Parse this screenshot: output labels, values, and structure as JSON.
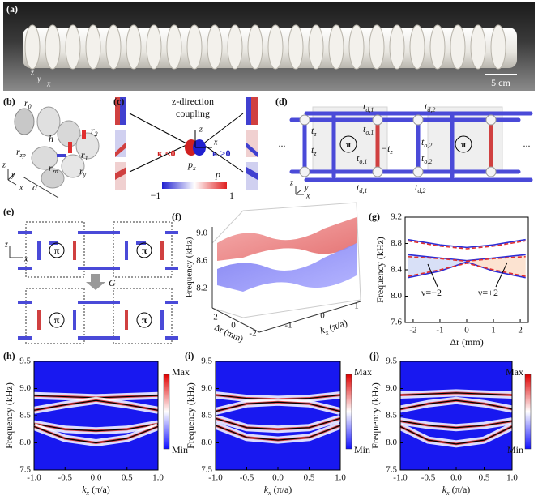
{
  "panels": {
    "a": {
      "label": "(a)",
      "axes": [
        "z",
        "y",
        "x"
      ],
      "scale": "5 cm"
    },
    "b": {
      "label": "(b)",
      "symbols": [
        {
          "m": "r",
          "s": "0"
        },
        {
          "m": "h"
        },
        {
          "m": "r",
          "s": "1"
        },
        {
          "m": "r",
          "s": "2"
        },
        {
          "m": "r",
          "s": "zp"
        },
        {
          "m": "r",
          "s": "zn"
        },
        {
          "m": "r",
          "s": "y"
        },
        {
          "m": "a"
        }
      ],
      "axes": [
        "z",
        "y",
        "x"
      ]
    },
    "c": {
      "label": "(c)",
      "title": [
        "z-direction",
        "coupling"
      ],
      "kappa_neg": "κ <0",
      "kappa_pos": "κ >0",
      "orbital": {
        "m": "p",
        "s": "x"
      },
      "axes": [
        "z",
        "x"
      ],
      "colorbar": {
        "min": "−1",
        "name": "p",
        "max": "1"
      }
    },
    "d": {
      "label": "(d)",
      "hoppings": [
        {
          "m": "t",
          "s": "d,1"
        },
        {
          "m": "t",
          "s": "d,2"
        },
        {
          "m": "t",
          "s": "z"
        },
        {
          "m": "t",
          "s": "o,1"
        },
        {
          "m": "t",
          "s": "z"
        },
        {
          "m": "−t",
          "s": "z"
        },
        {
          "m": "t",
          "s": "o,1"
        },
        {
          "m": "t",
          "s": "o,2"
        },
        {
          "m": "t",
          "s": "o,2"
        },
        {
          "m": "t",
          "s": "d,1"
        },
        {
          "m": "t",
          "s": "d,2"
        }
      ],
      "pi": [
        "π",
        "π"
      ],
      "dots": [
        "...",
        "..."
      ],
      "axes": [
        "z",
        "y",
        "x"
      ]
    },
    "e": {
      "label": "(e)",
      "arrow": "G",
      "pi": [
        "π",
        "π",
        "π",
        "π"
      ],
      "axes": [
        "z",
        "x"
      ]
    },
    "f": {
      "label": "(f)",
      "ylabel": "Frequency (kHz)",
      "yticks": [
        "9.0",
        "8.6",
        "8.2"
      ],
      "xlabel": "Δr (mm)",
      "xticks": [
        "2",
        "0",
        "-2"
      ],
      "klabel": {
        "m": "k",
        "s": "x",
        "r": " (π/a)"
      },
      "kticks": [
        "-1",
        "0",
        "1"
      ]
    }
  },
  "chart_data": [
    {
      "type": "line",
      "label": "(g)",
      "xlabel": "Δr (mm)",
      "ylabel": "Frequency (kHz)",
      "x": [
        -2.2,
        -1,
        0,
        1,
        2.2
      ],
      "xlim": [
        -2.3,
        2.3
      ],
      "xticks": [
        -2,
        -1,
        0,
        1,
        2
      ],
      "ylim": [
        7.6,
        9.2
      ],
      "yticks": [
        7.6,
        {
          "value": 8,
          "label": "8.0"
        },
        8.4,
        8.8,
        9.2
      ],
      "series": [
        {
          "color": "#2b2bd6",
          "style": "solid",
          "values": [
            8.86,
            8.78,
            8.74,
            8.78,
            8.86
          ]
        },
        {
          "color": "#2b2bd6",
          "style": "solid",
          "values": [
            8.63,
            8.58,
            8.54,
            8.58,
            8.63
          ]
        },
        {
          "color": "#2b2bd6",
          "style": "solid",
          "values": [
            8.28,
            8.38,
            8.52,
            8.38,
            8.28
          ]
        },
        {
          "color": "#e03030",
          "style": "dashed",
          "values": [
            8.84,
            8.76,
            8.72,
            8.76,
            8.84
          ]
        },
        {
          "color": "#e03030",
          "style": "dashed",
          "values": [
            8.6,
            8.57,
            8.53,
            8.57,
            8.6
          ]
        },
        {
          "color": "#e03030",
          "style": "dashed",
          "values": [
            8.3,
            8.4,
            8.5,
            8.4,
            8.3
          ]
        }
      ],
      "annotations": [
        "ν=−2",
        "ν=+2"
      ]
    },
    {
      "type": "spectrum",
      "label": "(h)",
      "xlabel": {
        "m": "k",
        "s": "x",
        "r": " (π/a)"
      },
      "ylabel": "Frequency (kHz)",
      "x": [
        -1,
        -0.5,
        0,
        0.5,
        1
      ],
      "xlim": [
        -1,
        1
      ],
      "xticks": [
        {
          "value": -1,
          "label": "-1.0"
        },
        -0.5,
        {
          "value": 0,
          "label": "0.0"
        },
        0.5,
        {
          "value": 1,
          "label": "1.0"
        }
      ],
      "ylim": [
        7.5,
        9.5
      ],
      "yticks": [
        7.5,
        {
          "value": 8,
          "label": "8.0"
        },
        8.5,
        {
          "value": 9,
          "label": "9.0"
        },
        9.5
      ],
      "colorbar": {
        "max": "Max",
        "min": "Min"
      },
      "series": [
        {
          "color": "#000000",
          "values": [
            8.87,
            8.85,
            8.83,
            8.85,
            8.87
          ]
        },
        {
          "color": "#000000",
          "values": [
            8.6,
            8.7,
            8.78,
            8.7,
            8.6
          ]
        },
        {
          "color": "#000000",
          "values": [
            8.35,
            8.25,
            8.22,
            8.25,
            8.35
          ]
        },
        {
          "color": "#000000",
          "values": [
            8.3,
            8.08,
            8.0,
            8.08,
            8.3
          ]
        }
      ]
    },
    {
      "type": "spectrum",
      "label": "(i)",
      "xlabel": {
        "m": "k",
        "s": "x",
        "r": " (π/a)"
      },
      "ylabel": "Frequency (kHz)",
      "x": [
        -1,
        -0.5,
        0,
        0.5,
        1
      ],
      "xlim": [
        -1,
        1
      ],
      "xticks": [
        {
          "value": -1,
          "label": "-1.0"
        },
        -0.5,
        {
          "value": 0,
          "label": "0.0"
        },
        0.5,
        {
          "value": 1,
          "label": "1.0"
        }
      ],
      "ylim": [
        7.5,
        9.5
      ],
      "yticks": [
        7.5,
        {
          "value": 8,
          "label": "8.0"
        },
        8.5,
        {
          "value": 9,
          "label": "9.0"
        },
        9.5
      ],
      "colorbar": {
        "max": "Max",
        "min": "Min"
      },
      "series": [
        {
          "color": "#000000",
          "values": [
            8.88,
            8.82,
            8.8,
            8.82,
            8.88
          ]
        },
        {
          "color": "#000000",
          "values": [
            8.58,
            8.72,
            8.75,
            8.72,
            8.58
          ]
        },
        {
          "color": "#000000",
          "values": [
            8.45,
            8.28,
            8.25,
            8.28,
            8.45
          ]
        },
        {
          "color": "#000000",
          "values": [
            8.32,
            8.1,
            8.05,
            8.1,
            8.32
          ]
        }
      ]
    },
    {
      "type": "spectrum",
      "label": "(j)",
      "xlabel": {
        "m": "k",
        "s": "x",
        "r": " (π/a)"
      },
      "ylabel": "Frequency (kHz)",
      "x": [
        -1,
        -0.5,
        0,
        0.5,
        1
      ],
      "xlim": [
        -1,
        1
      ],
      "xticks": [
        {
          "value": -1,
          "label": "-1.0"
        },
        -0.5,
        {
          "value": 0,
          "label": "0.0"
        },
        0.5,
        {
          "value": 1,
          "label": "1.0"
        }
      ],
      "ylim": [
        7.5,
        9.5
      ],
      "yticks": [
        7.5,
        {
          "value": 8,
          "label": "8.0"
        },
        8.5,
        {
          "value": 9,
          "label": "9.0"
        },
        9.5
      ],
      "colorbar": {
        "max": "Max",
        "min": "Min"
      },
      "series": [
        {
          "color": "#000000",
          "values": [
            8.88,
            8.9,
            8.92,
            8.9,
            8.88
          ]
        },
        {
          "color": "#000000",
          "values": [
            8.62,
            8.72,
            8.78,
            8.72,
            8.62
          ]
        },
        {
          "color": "#000000",
          "values": [
            8.4,
            8.32,
            8.28,
            8.32,
            8.4
          ]
        },
        {
          "color": "#000000",
          "values": [
            8.3,
            8.05,
            7.98,
            8.05,
            8.3
          ]
        }
      ]
    }
  ]
}
